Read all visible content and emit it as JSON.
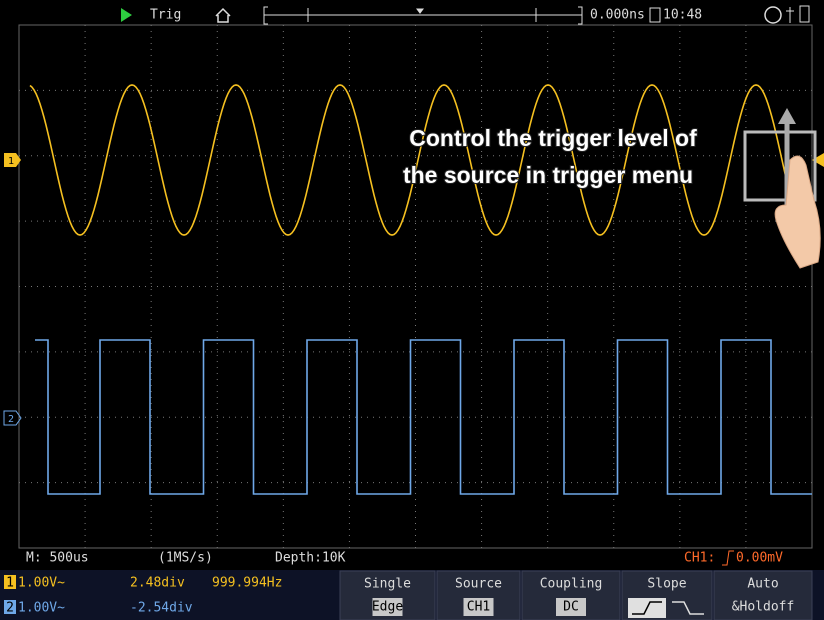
{
  "top_bar": {
    "trigger_status": "Trig",
    "time_offset": "0.000ns",
    "clock": "10:48"
  },
  "annotation": {
    "lines": [
      "Control the trigger level of",
      "the source in trigger menu"
    ]
  },
  "status_bar": {
    "timebase": "M: 500us",
    "sample_rate": "(1MS/s)",
    "depth": "Depth:10K",
    "trigger_info": "CH1:",
    "trigger_level": "0.00mV"
  },
  "channels": [
    {
      "number": "1",
      "scale": "1.00V~",
      "position": "2.48div",
      "frequency": "999.994Hz"
    },
    {
      "number": "2",
      "scale": "1.00V~",
      "position": "-2.54div"
    }
  ],
  "menu": [
    {
      "label": "Single",
      "value": "Edge"
    },
    {
      "label": "Source",
      "value": "CH1"
    },
    {
      "label": "Coupling",
      "value": "DC"
    },
    {
      "label": "Slope"
    },
    {
      "label": "Auto",
      "value": "&Holdoff"
    }
  ]
}
